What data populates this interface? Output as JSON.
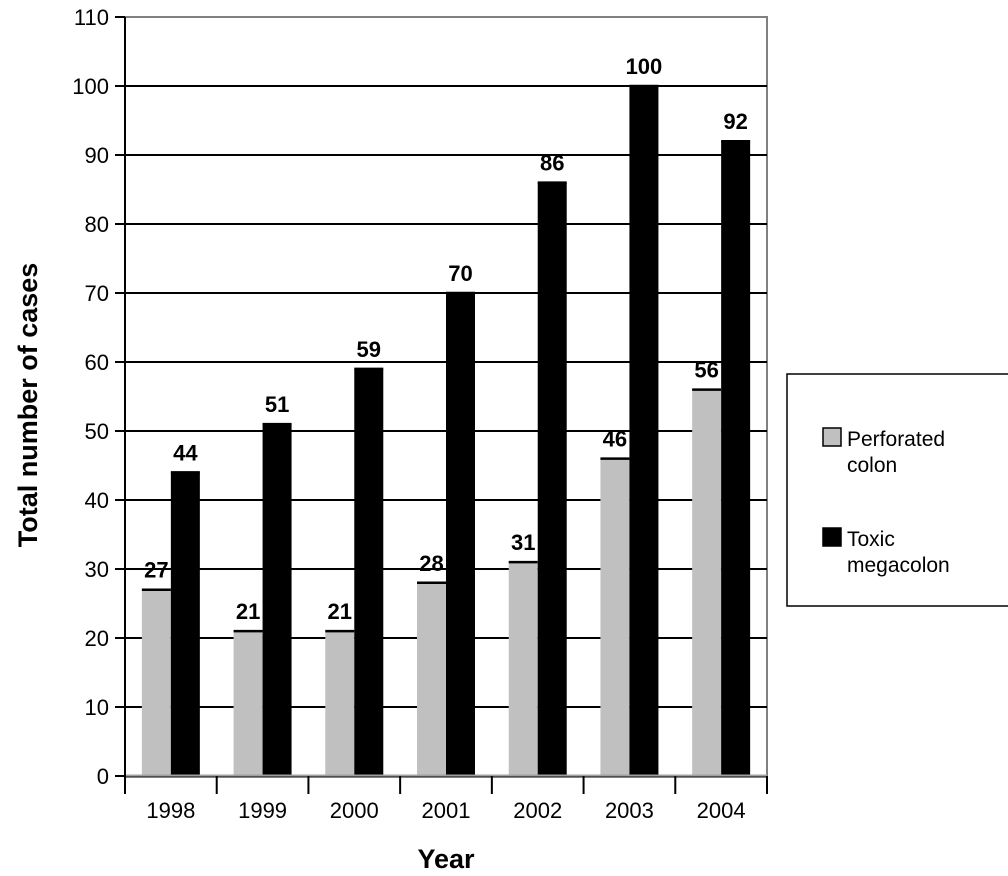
{
  "chart_data": {
    "type": "bar",
    "title": "",
    "xlabel": "Year",
    "ylabel": "Total number of cases",
    "categories": [
      "1998",
      "1999",
      "2000",
      "2001",
      "2002",
      "2003",
      "2004"
    ],
    "series": [
      {
        "name": "Perforated colon",
        "values": [
          27,
          21,
          21,
          28,
          31,
          46,
          56
        ],
        "color": "#c0c0c0"
      },
      {
        "name": "Toxic megacolon",
        "values": [
          44,
          51,
          59,
          70,
          86,
          100,
          92
        ],
        "color": "#000000"
      }
    ],
    "ylim": [
      0,
      110
    ],
    "yticks": [
      0,
      10,
      20,
      30,
      40,
      50,
      60,
      70,
      80,
      90,
      100,
      110
    ],
    "grid": true,
    "data_labels": true,
    "legend": {
      "position": "right",
      "items": [
        {
          "lines": [
            "Perforated",
            "colon"
          ]
        },
        {
          "lines": [
            "Toxic",
            "megacolon"
          ]
        }
      ]
    }
  }
}
